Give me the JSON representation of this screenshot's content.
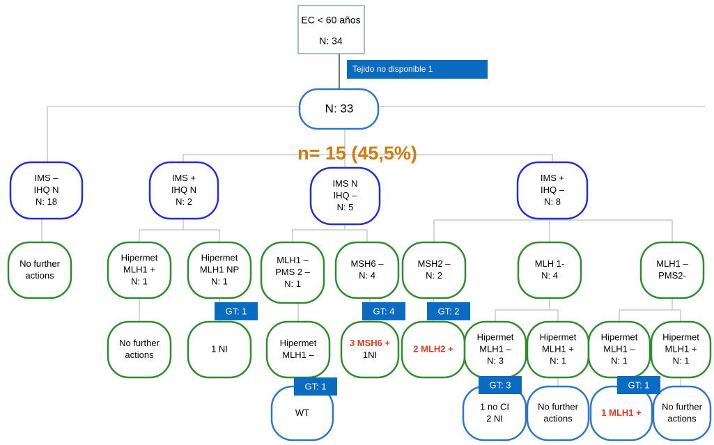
{
  "root": {
    "lines": [
      "EC < 60 años",
      "N: 34"
    ]
  },
  "excluded": "Tejido no disponible 1",
  "center": {
    "lines": [
      "N: 33"
    ]
  },
  "headline": "n= 15 (45,5%)",
  "nodes": [
    {
      "lines": [
        "IMS –",
        "IHQ N",
        "N: 18"
      ]
    },
    {
      "lines": [
        "IMS +",
        "IHQ N",
        "N: 2"
      ]
    },
    {
      "lines": [
        "IMS N",
        "IHQ –",
        "N: 5"
      ]
    },
    {
      "lines": [
        "IMS +",
        "IHQ –",
        "N: 8"
      ]
    },
    {
      "lines": [
        "No further",
        "actions"
      ]
    },
    {
      "lines": [
        "Hipermet",
        "MLH1 +",
        "N: 1"
      ]
    },
    {
      "lines": [
        "Hipermet",
        "MLH1 NP",
        "N: 1"
      ]
    },
    {
      "lines": [
        "MLH1 –",
        "PMS 2 –",
        "N: 1"
      ]
    },
    {
      "lines": [
        "MSH6 –",
        "N: 4"
      ]
    },
    {
      "lines": [
        "MSH2 –",
        "N: 2"
      ]
    },
    {
      "lines": [
        "MLH 1-",
        "N: 4"
      ]
    },
    {
      "lines": [
        "MLH1 –",
        "PMS2-"
      ]
    },
    {
      "lines": [
        "No further",
        "actions"
      ]
    },
    {
      "lines": [
        "1 NI"
      ]
    },
    {
      "lines": [
        "Hipermet",
        "MLH1 –"
      ]
    },
    {
      "lines": [
        "3 MSH6 +",
        "1NI"
      ]
    },
    {
      "lines": [
        "2 MLH2 +"
      ]
    },
    {
      "lines": [
        "Hipermet",
        "MLH1 –",
        "N: 3"
      ]
    },
    {
      "lines": [
        "Hipermet",
        "MLH1 +",
        "N: 1"
      ]
    },
    {
      "lines": [
        "Hipermet",
        "MLH1 –",
        "N: 1"
      ]
    },
    {
      "lines": [
        "Hipermet",
        "MLH1 +",
        "N: 1"
      ]
    },
    {
      "lines": [
        "WT"
      ]
    },
    {
      "lines": [
        "1 no CI",
        "2 NI"
      ]
    },
    {
      "lines": [
        "No further",
        "actions"
      ]
    },
    {
      "lines": [
        "1 MLH1 +"
      ]
    },
    {
      "lines": [
        "No further",
        "actions"
      ]
    }
  ],
  "gt_labels": [
    "GT: 1",
    "GT: 4",
    "GT: 2",
    "GT: 1",
    "GT: 3",
    "GT: 1"
  ]
}
